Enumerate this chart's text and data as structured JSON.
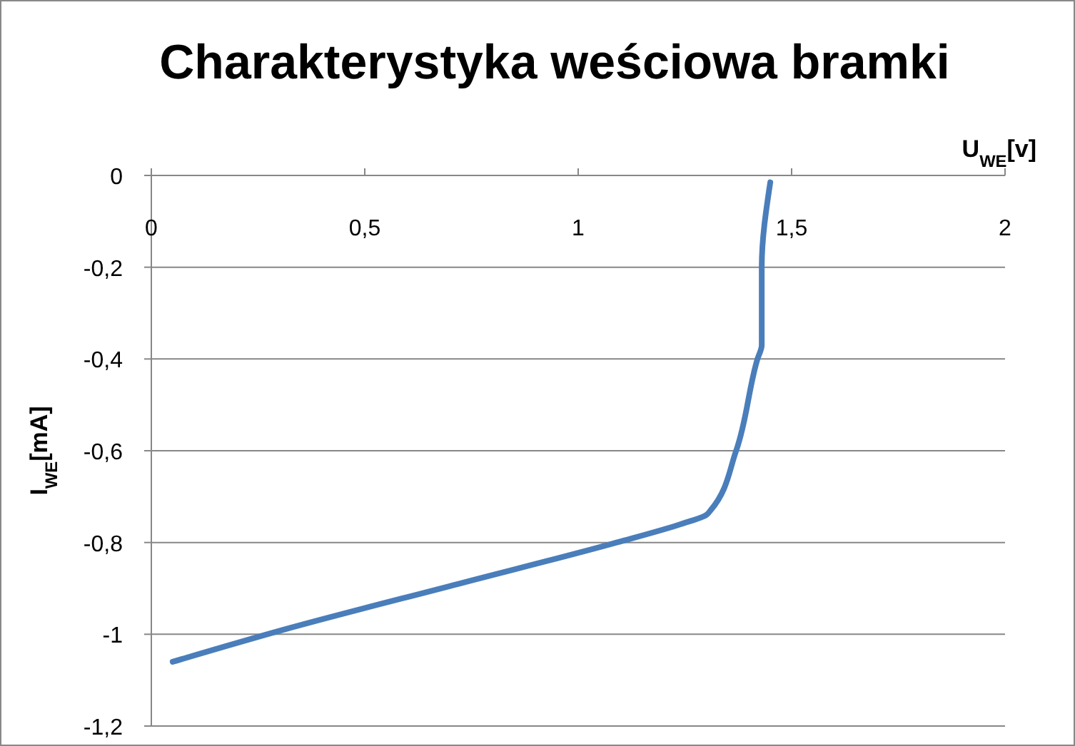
{
  "chart_data": {
    "type": "line",
    "title": "Charakterystyka weściowa bramki",
    "xlabel": "U$_{WE}$[v]",
    "ylabel": "I$_{WE}$[mA]",
    "x": [
      0.05,
      0.31,
      0.72,
      1.09,
      1.24,
      1.3,
      1.31,
      1.37,
      1.42,
      1.43,
      1.43,
      1.43,
      1.45
    ],
    "series": [
      {
        "color": "#4a7ebb",
        "values": [
          -1.06,
          -0.99,
          -0.89,
          -0.8,
          -0.76,
          -0.74,
          -0.73,
          -0.6,
          -0.4,
          -0.37,
          -0.27,
          -0.2,
          -0.015
        ]
      }
    ],
    "xlim": [
      0,
      2
    ],
    "xticks": [
      0,
      {
        "value": 0.5,
        "label": "0,5"
      },
      1,
      {
        "value": 1.5,
        "label": "1,5"
      },
      2
    ],
    "ylim": [
      -1.2,
      0
    ],
    "yticks": [
      {
        "value": -1.2,
        "label": "-1,2"
      },
      -1,
      {
        "value": -0.8,
        "label": "-0,8"
      },
      {
        "value": -0.6,
        "label": "-0,6"
      },
      {
        "value": -0.4,
        "label": "-0,4"
      },
      {
        "value": -0.2,
        "label": "-0,2"
      },
      0
    ],
    "grid": "y",
    "marker": "none",
    "line_style": "solid"
  }
}
